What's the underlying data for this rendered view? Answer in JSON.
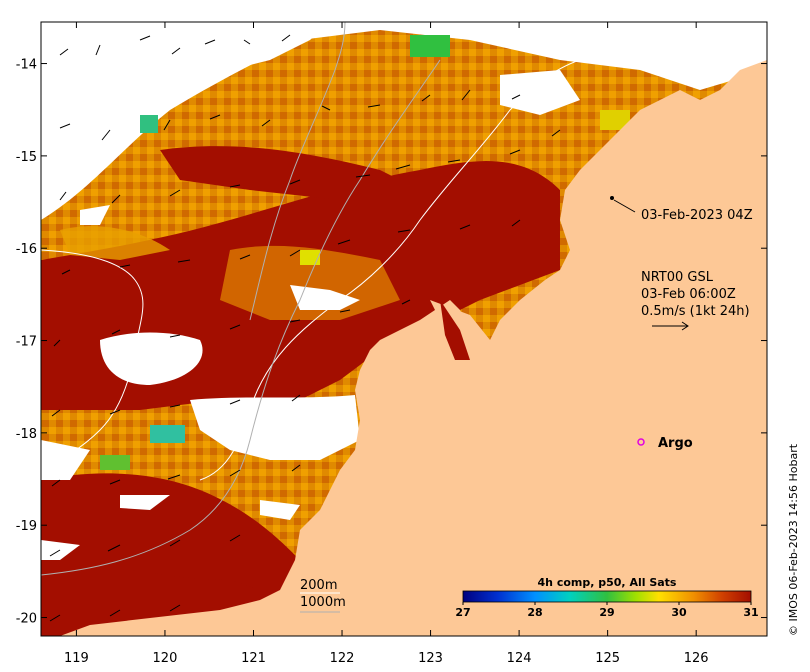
{
  "map": {
    "x_ticks": [
      "119",
      "120",
      "121",
      "122",
      "123",
      "124",
      "125",
      "126"
    ],
    "y_ticks": [
      "-14",
      "-15",
      "-16",
      "-17",
      "-18",
      "-19",
      "-20"
    ],
    "x_range": [
      118.6,
      126.8
    ],
    "y_range": [
      -20.2,
      -13.55
    ]
  },
  "annotations": {
    "timestamp": "03-Feb-2023 04Z",
    "current_title": "NRT00 GSL",
    "current_time": "03-Feb 06:00Z",
    "current_scale": "0.5m/s (1kt 24h)",
    "argo_label": "Argo",
    "depth_200": "200m",
    "depth_1000": "1000m",
    "credit": "© IMOS 06-Feb-2023 14:56 Hobart"
  },
  "colorbar": {
    "title": "4h comp, p50, All Sats",
    "ticks": [
      "27",
      "28",
      "29",
      "30",
      "31"
    ],
    "range": [
      27,
      31
    ]
  },
  "colors": {
    "land": "#fdc896",
    "deep_red": "#a30e00",
    "orange": "#e07a00",
    "argo": "#e000e0"
  },
  "icons": {
    "argo_marker": "ring-marker"
  }
}
